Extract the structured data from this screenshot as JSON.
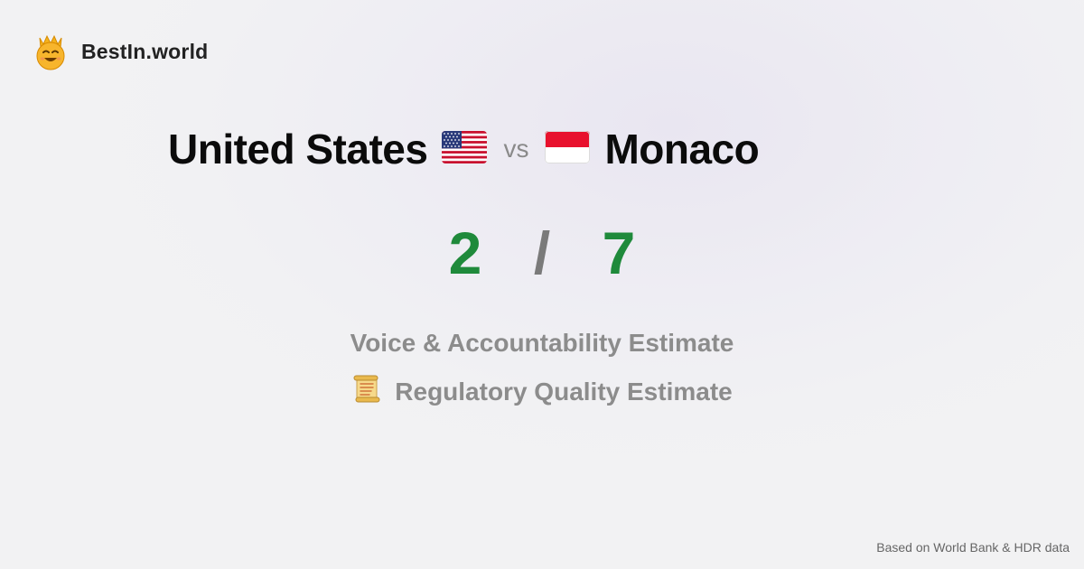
{
  "brand": {
    "name": "BestIn.world",
    "logo_icon": "crown-smiley-icon"
  },
  "comparison": {
    "left_country": "United States",
    "left_flag_icon": "us-flag-icon",
    "vs_label": "vs",
    "right_country": "Monaco",
    "right_flag_icon": "monaco-flag-icon"
  },
  "score": {
    "left": "2",
    "separator": "/",
    "right": "7",
    "color": "#1f8a3b"
  },
  "metrics": [
    {
      "label": "Voice & Accountability Estimate"
    },
    {
      "label": "Regulatory Quality Estimate",
      "icon": "scroll-icon"
    }
  ],
  "footer": {
    "source": "Based on World Bank & HDR data"
  }
}
